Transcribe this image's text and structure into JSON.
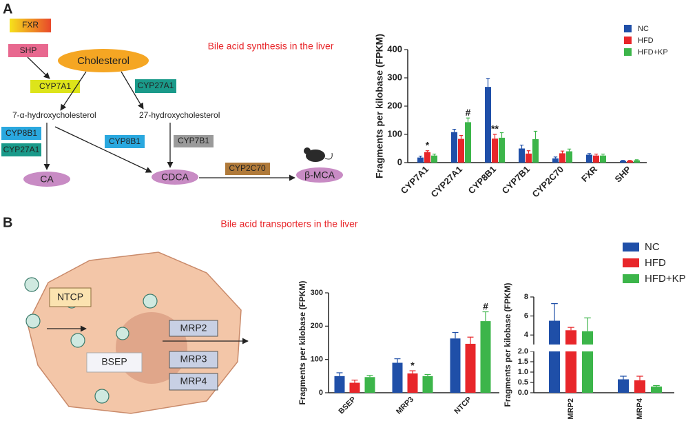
{
  "panels": [
    {
      "label": "A",
      "title": "Bile acid synthesis in the liver"
    },
    {
      "label": "B",
      "title": "Bile acid transporters in the liver"
    }
  ],
  "diagram_a": {
    "nodes": [
      "FXR",
      "SHP",
      "Cholesterol",
      "CYP7A1",
      "CYP27A1",
      "7-α-hydroxycholesterol",
      "27-hydroxycholesterol",
      "CYP8B1",
      "CYP27A1",
      "CYP8B1",
      "CYP7B1",
      "CA",
      "CDCA",
      "CYP2C70",
      "β-MCA"
    ]
  },
  "diagram_b": {
    "nodes": [
      "NTCP",
      "MRP2",
      "BSEP",
      "MRP3",
      "MRP4"
    ]
  },
  "chart_data": [
    {
      "type": "bar",
      "ylabel": "Fragments per kilobase (FPKM)",
      "categories": [
        "CYP7A1",
        "CYP27A1",
        "CYP8B1",
        "CYP7B1",
        "CYP2C70",
        "FXR",
        "SHP"
      ],
      "ylim": [
        0,
        400
      ],
      "yticks": [
        0,
        100,
        200,
        300,
        400
      ],
      "grid": false,
      "series": [
        {
          "name": "NC",
          "color": "#1f4fa8",
          "values": [
            18,
            108,
            268,
            50,
            15,
            28,
            6
          ],
          "errors": [
            5,
            10,
            30,
            12,
            5,
            4,
            2
          ],
          "significance": [
            null,
            null,
            null,
            null,
            null,
            null,
            null
          ]
        },
        {
          "name": "HFD",
          "color": "#e8262a",
          "values": [
            37,
            84,
            85,
            32,
            33,
            25,
            6
          ],
          "errors": [
            5,
            12,
            15,
            10,
            8,
            5,
            2
          ],
          "significance": [
            "*",
            null,
            "**",
            null,
            null,
            null,
            null
          ]
        },
        {
          "name": "HFD+KP",
          "color": "#3cb54a",
          "values": [
            25,
            143,
            88,
            83,
            40,
            25,
            8
          ],
          "errors": [
            5,
            15,
            18,
            28,
            8,
            5,
            2
          ],
          "significance": [
            null,
            "#",
            null,
            null,
            null,
            null,
            null
          ]
        }
      ]
    },
    {
      "type": "bar",
      "ylabel": "Fragments per kilobase (FPKM)",
      "categories": [
        "BSEP",
        "MRP3",
        "NTCP"
      ],
      "ylim": [
        0,
        300
      ],
      "yticks": [
        0,
        100,
        200,
        300
      ],
      "grid": false,
      "series": [
        {
          "name": "NC",
          "color": "#1f4fa8",
          "values": [
            50,
            90,
            163
          ],
          "errors": [
            10,
            12,
            18
          ],
          "significance": [
            null,
            null,
            null
          ]
        },
        {
          "name": "HFD",
          "color": "#e8262a",
          "values": [
            30,
            58,
            147
          ],
          "errors": [
            8,
            8,
            20
          ],
          "significance": [
            null,
            "*",
            null
          ]
        },
        {
          "name": "HFD+KP",
          "color": "#3cb54a",
          "values": [
            47,
            50,
            215
          ],
          "errors": [
            5,
            5,
            28
          ],
          "significance": [
            null,
            null,
            "#"
          ]
        }
      ]
    },
    {
      "type": "bar",
      "ylabel": "Fragments per kilobase (FPKM)",
      "categories": [
        "MRP2",
        "MRP4"
      ],
      "ylim": [
        0,
        8
      ],
      "ybreak": [
        2,
        3
      ],
      "yticks": [
        {
          "value": 0,
          "label": "0.0"
        },
        0.5,
        {
          "value": 1,
          "label": "1.0"
        },
        1.5,
        {
          "value": 2,
          "label": "2.0"
        },
        4,
        6,
        8
      ],
      "grid": false,
      "series": [
        {
          "color": "#1f4fa8",
          "values": [
            5.5,
            0.65
          ],
          "errors": [
            1.8,
            0.15
          ]
        },
        {
          "color": "#e8262a",
          "values": [
            4.5,
            0.6
          ],
          "errors": [
            0.3,
            0.2
          ]
        },
        {
          "color": "#3cb54a",
          "values": [
            4.4,
            0.3
          ],
          "errors": [
            1.4,
            0.05
          ]
        }
      ]
    }
  ]
}
